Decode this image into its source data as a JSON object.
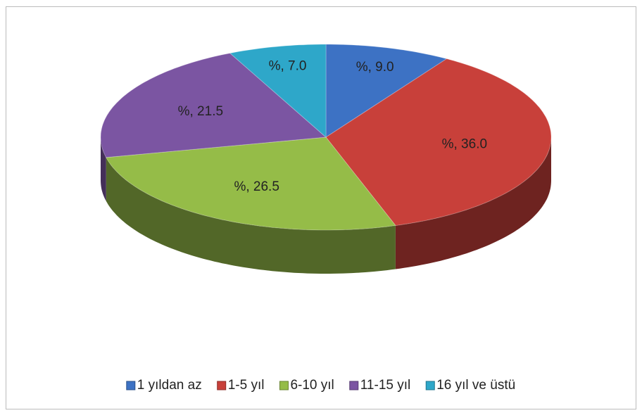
{
  "chart_data": {
    "type": "pie",
    "categories": [
      "1 yıldan az",
      "1-5 yıl",
      "6-10 yıl",
      "11-15 yıl",
      "16 yıl ve üstü"
    ],
    "values": [
      9.0,
      36.0,
      26.5,
      21.5,
      7.0
    ],
    "value_labels": [
      "%, 9.0",
      "%, 36.0",
      "%, 26.5",
      "%, 21.5",
      "%, 7.0"
    ],
    "colors": [
      "#3d72c4",
      "#c8403a",
      "#95bc48",
      "#7b55a2",
      "#2ea7c9"
    ],
    "legend": "bottom"
  }
}
